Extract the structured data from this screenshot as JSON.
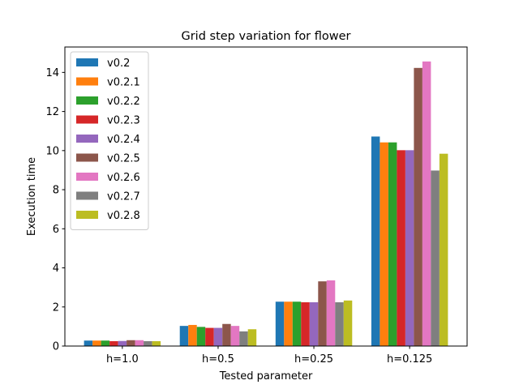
{
  "chart_data": {
    "type": "bar",
    "title": "Grid step variation for flower",
    "xlabel": "Tested parameter",
    "ylabel": "Execution time",
    "categories": [
      "h=1.0",
      "h=0.5",
      "h=0.25",
      "h=0.125"
    ],
    "ylim": [
      0,
      15.3
    ],
    "yticks": [
      "0",
      "2",
      "4",
      "6",
      "8",
      "10",
      "12",
      "14"
    ],
    "grid": false,
    "legend_position": "top-left",
    "series": [
      {
        "name": "v0.2",
        "color": "#1f77b4",
        "values": [
          0.28,
          1.03,
          2.27,
          10.72
        ]
      },
      {
        "name": "v0.2.1",
        "color": "#ff7f0e",
        "values": [
          0.28,
          1.08,
          2.27,
          10.42
        ]
      },
      {
        "name": "v0.2.2",
        "color": "#2ca02c",
        "values": [
          0.28,
          0.98,
          2.27,
          10.42
        ]
      },
      {
        "name": "v0.2.3",
        "color": "#d62728",
        "values": [
          0.25,
          0.93,
          2.24,
          10.02
        ]
      },
      {
        "name": "v0.2.4",
        "color": "#9467bd",
        "values": [
          0.26,
          0.93,
          2.24,
          10.02
        ]
      },
      {
        "name": "v0.2.5",
        "color": "#8c564b",
        "values": [
          0.3,
          1.13,
          3.31,
          14.23
        ]
      },
      {
        "name": "v0.2.6",
        "color": "#e377c2",
        "values": [
          0.3,
          1.03,
          3.36,
          14.56
        ]
      },
      {
        "name": "v0.2.7",
        "color": "#7f7f7f",
        "values": [
          0.25,
          0.75,
          2.24,
          8.98
        ]
      },
      {
        "name": "v0.2.8",
        "color": "#bcbd22",
        "values": [
          0.25,
          0.86,
          2.33,
          9.84
        ]
      }
    ]
  }
}
